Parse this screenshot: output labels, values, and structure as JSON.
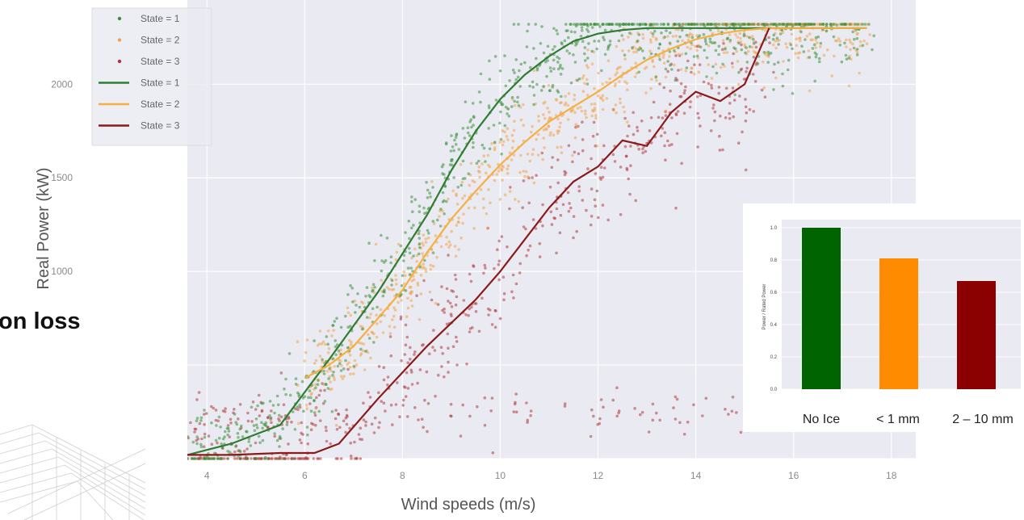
{
  "chart_data": [
    {
      "type": "scatter",
      "xlabel": "Wind speeds (m/s)",
      "ylabel": "Real Power (kW)",
      "xlim": [
        3.6,
        18.5
      ],
      "ylim": [
        0,
        2450
      ],
      "xticks": [
        4,
        6,
        8,
        10,
        12,
        14,
        16,
        18
      ],
      "yticks": [
        1000,
        1500,
        2000
      ],
      "grid": true,
      "legend_position": "top-left",
      "legend": [
        {
          "label": "State = 1",
          "kind": "marker",
          "color": "#3b8f3b"
        },
        {
          "label": "State = 2",
          "kind": "marker",
          "color": "#f2a24a"
        },
        {
          "label": "State = 3",
          "kind": "marker",
          "color": "#a83838"
        },
        {
          "label": "State = 1",
          "kind": "line",
          "color": "#2e7d32"
        },
        {
          "label": "State = 2",
          "kind": "line",
          "color": "#f5b041"
        },
        {
          "label": "State = 3",
          "kind": "line",
          "color": "#8b1a1a"
        }
      ],
      "series": [
        {
          "name": "State = 1",
          "color": "#2e7d32",
          "x": [
            3.6,
            4.5,
            5.5,
            6.5,
            7.5,
            8.5,
            9.0,
            9.5,
            10.0,
            10.5,
            11.0,
            11.5,
            12.0,
            12.5,
            13.0,
            14.0,
            15.0,
            16.0,
            17.0,
            17.5
          ],
          "y": [
            20,
            80,
            180,
            530,
            890,
            1300,
            1540,
            1750,
            1920,
            2050,
            2150,
            2230,
            2270,
            2290,
            2300,
            2300,
            2300,
            2300,
            2300,
            2300
          ]
        },
        {
          "name": "State = 2",
          "color": "#f5b041",
          "x": [
            6.0,
            6.5,
            7.0,
            7.5,
            8.0,
            8.5,
            9.0,
            9.5,
            10.0,
            10.5,
            11.0,
            11.5,
            12.0,
            12.5,
            13.0,
            13.5,
            14.0,
            14.5,
            15.0,
            15.5,
            16.0,
            17.0,
            17.5
          ],
          "y": [
            430,
            500,
            600,
            750,
            900,
            1100,
            1280,
            1430,
            1570,
            1690,
            1800,
            1880,
            1960,
            2050,
            2130,
            2190,
            2240,
            2270,
            2290,
            2300,
            2300,
            2300,
            2300
          ]
        },
        {
          "name": "State = 3",
          "color": "#8b1a1a",
          "x": [
            3.6,
            4.5,
            5.5,
            6.2,
            6.7,
            7.5,
            8.5,
            9.5,
            10.0,
            11.0,
            11.5,
            12.0,
            12.5,
            13.0,
            13.5,
            14.0,
            14.5,
            15.0,
            15.5
          ],
          "y": [
            20,
            20,
            30,
            30,
            80,
            320,
            600,
            850,
            1000,
            1340,
            1480,
            1560,
            1700,
            1670,
            1850,
            1960,
            1910,
            2000,
            2300
          ]
        }
      ]
    },
    {
      "type": "bar",
      "categories": [
        "No Ice",
        "< 1 mm",
        "2 – 10 mm"
      ],
      "values": [
        1.0,
        0.81,
        0.67
      ],
      "colors": [
        "#006400",
        "#ff8c00",
        "#8b0000"
      ],
      "ylabel": "Power / Rated Power",
      "ylim": [
        0,
        1.05
      ],
      "yticks": [
        "0.0",
        "0.2",
        "0.4",
        "0.6",
        "0.8",
        "1.0"
      ]
    }
  ],
  "overlay_heading": "on loss"
}
